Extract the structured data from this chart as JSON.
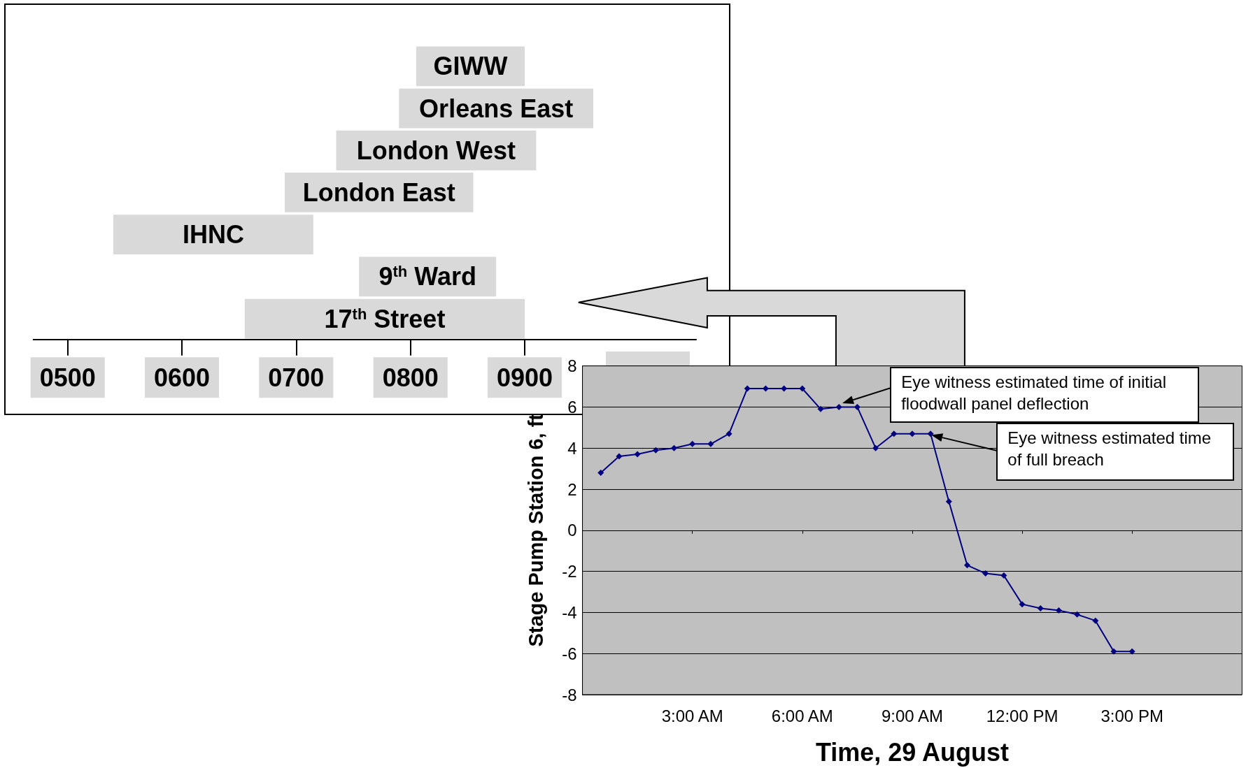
{
  "chart_data": [
    {
      "type": "bar",
      "orientation": "horizontal",
      "categories": [
        "GIWW",
        "Orleans East",
        "London West",
        "London East",
        "IHNC",
        "9$^{th}$ Ward",
        "17$^{th}$ Street"
      ],
      "base": [
        805,
        790,
        735,
        690,
        540,
        755,
        655
      ],
      "values": [
        95,
        170,
        175,
        165,
        175,
        120,
        245
      ],
      "color": "#d9d9d9",
      "xlim": [
        470,
        1050
      ],
      "xticks": [
        {
          "value": 500,
          "label": "0500"
        },
        {
          "value": 600,
          "label": "0600"
        },
        {
          "value": 700,
          "label": "0700"
        },
        {
          "value": 800,
          "label": "0800"
        },
        {
          "value": 900,
          "label": "0900"
        }
      ],
      "tick_labels": "x"
    },
    {
      "type": "line",
      "xlabel": "Time, 29 August",
      "ylabel": "Stage Pump Station 6, ft",
      "x": [
        0.5,
        1,
        1.5,
        2,
        2.5,
        3,
        3.5,
        4,
        4.5,
        5,
        5.5,
        6,
        6.5,
        7,
        7.5,
        8,
        8.5,
        9,
        9.5,
        10,
        10.5,
        11,
        11.5,
        12,
        12.5,
        13,
        13.5,
        14,
        14.5,
        15
      ],
      "series": [
        {
          "color": "#000080",
          "values": [
            2.8,
            3.6,
            3.7,
            3.9,
            4,
            4.2,
            4.2,
            4.7,
            6.9,
            6.9,
            6.9,
            6.9,
            5.9,
            6,
            6,
            4,
            4.7,
            4.7,
            4.7,
            1.4,
            -1.7,
            -2.1,
            -2.2,
            -3.6,
            -3.8,
            -3.9,
            -4.1,
            -4.4,
            -5.9,
            -5.9
          ]
        }
      ],
      "xlim": [
        0,
        18
      ],
      "xticks": [
        {
          "value": 3,
          "label": "3:00 AM"
        },
        {
          "value": 6,
          "label": "6:00 AM"
        },
        {
          "value": 9,
          "label": "9:00 AM"
        },
        {
          "value": 12,
          "label": "12:00 PM"
        },
        {
          "value": 15,
          "label": "3:00 PM"
        }
      ],
      "ylim": [
        -8,
        8
      ],
      "yticks": [
        -8,
        -6,
        -4,
        -2,
        0,
        2,
        4,
        6,
        8
      ],
      "grid": "y",
      "marker": "diamond",
      "line_style": "solid",
      "annotations": [
        "Eye witness estimated time of initial floodwall panel deflection",
        "Eye witness estimated time of full breach"
      ]
    }
  ]
}
